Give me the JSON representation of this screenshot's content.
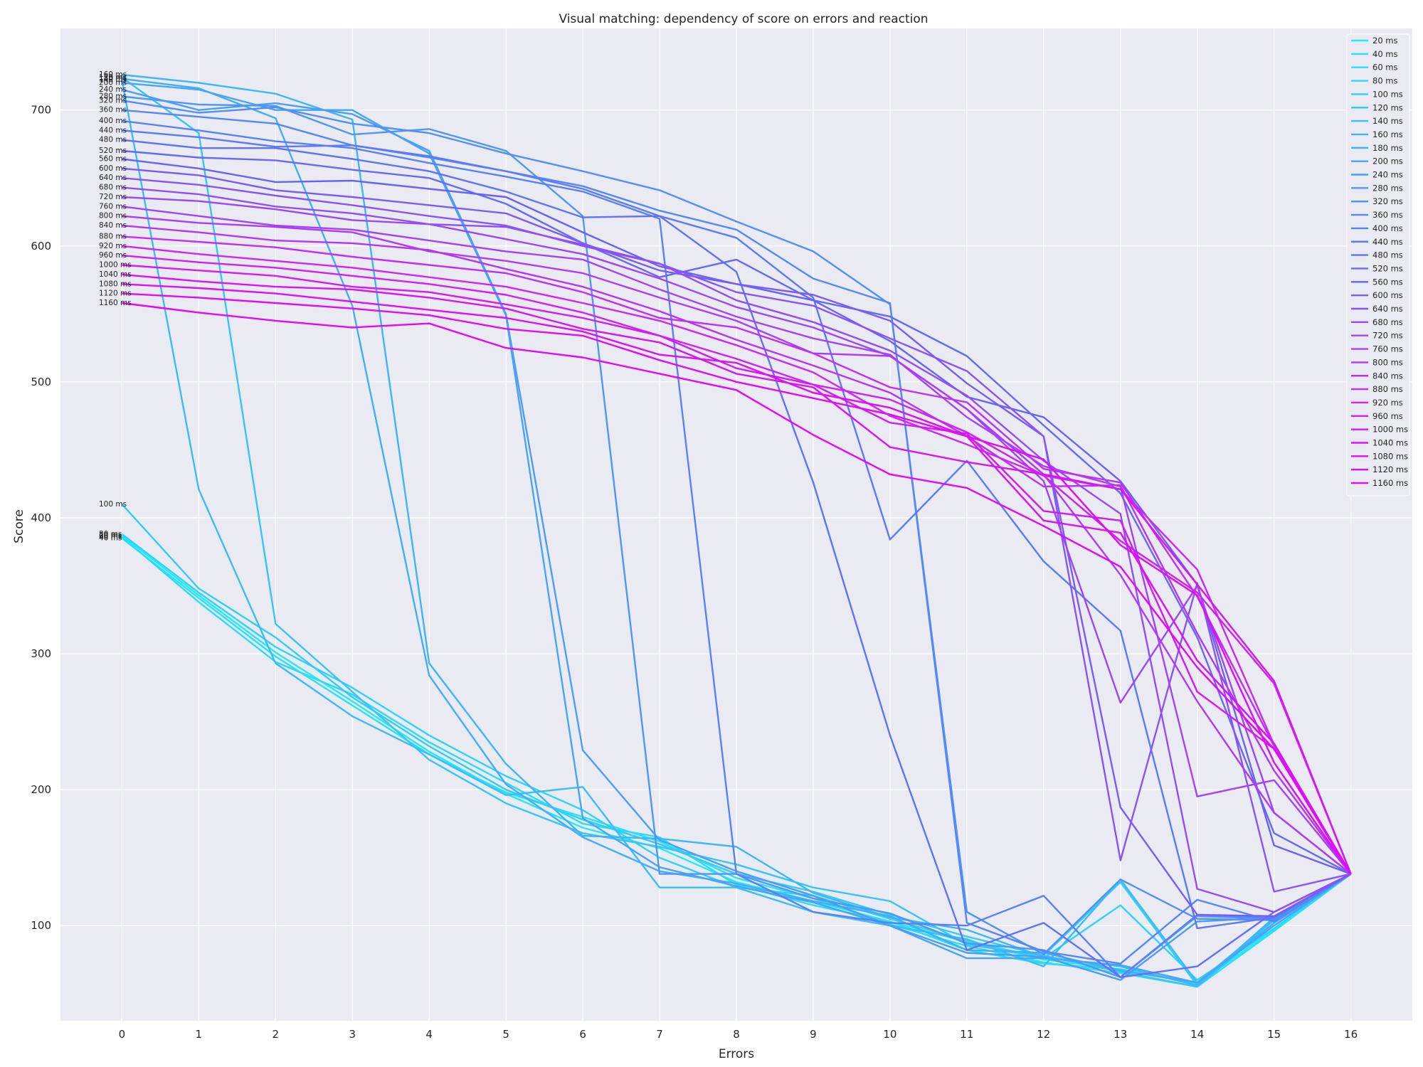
{
  "chart_data": {
    "type": "line",
    "title": "Visual matching: dependency of score on errors and reaction",
    "xlabel": "Errors",
    "ylabel": "Score",
    "x": [
      0,
      1,
      2,
      3,
      4,
      5,
      6,
      7,
      8,
      9,
      10,
      11,
      12,
      13,
      14,
      15,
      16
    ],
    "xlim": [
      -0.8,
      16.8
    ],
    "ylim": [
      30,
      760
    ],
    "yticks": [
      100,
      200,
      300,
      400,
      500,
      600,
      700
    ],
    "grid": true,
    "legend_position": "top-right",
    "series": [
      {
        "name": "20 ms",
        "label": "20  ms",
        "color": "#22ebf5",
        "values": [
          387,
          343,
          301,
          265,
          228,
          197,
          172,
          157,
          132,
          118,
          103,
          88,
          75,
          68,
          57,
          97,
          138
        ]
      },
      {
        "name": "40 ms",
        "label": "40  ms",
        "color": "#26e4f5",
        "values": [
          385,
          341,
          298,
          262,
          226,
          198,
          180,
          162,
          135,
          120,
          101,
          85,
          73,
          65,
          55,
          96,
          138
        ]
      },
      {
        "name": "60 ms",
        "label": "60  ms",
        "color": "#2adcf5",
        "values": [
          386,
          338,
          294,
          270,
          235,
          205,
          175,
          165,
          130,
          115,
          103,
          82,
          72,
          68,
          58,
          100,
          138
        ]
      },
      {
        "name": "80 ms",
        "label": "80  ms",
        "color": "#2ed4f5",
        "values": [
          388,
          345,
          305,
          275,
          240,
          210,
          185,
          150,
          128,
          122,
          105,
          89,
          76,
          115,
          60,
          98,
          138
        ]
      },
      {
        "name": "100 ms",
        "label": "100  ms",
        "color": "#32cdf5",
        "values": [
          410,
          348,
          312,
          268,
          232,
          200,
          178,
          160,
          138,
          125,
          108,
          92,
          78,
          132,
          56,
          105,
          138
        ]
      },
      {
        "name": "120 ms",
        "label": "120 ms",
        "color": "#36c5f5",
        "values": [
          724,
          683,
          322,
          272,
          222,
          190,
          168,
          158,
          145,
          128,
          118,
          86,
          78,
          66,
          55,
          102,
          138
        ]
      },
      {
        "name": "140 ms",
        "label": "140 ms",
        "color": "#3abdf5",
        "values": [
          722,
          421,
          293,
          254,
          226,
          196,
          202,
          128,
          128,
          110,
          100,
          90,
          70,
          134,
          58,
          104,
          138
        ]
      },
      {
        "name": "160 ms",
        "label": "160 ms",
        "color": "#3eb6f5",
        "values": [
          726,
          720,
          712,
          693,
          293,
          219,
          166,
          164,
          158,
          124,
          106,
          97,
          77,
          70,
          56,
          106,
          138
        ]
      },
      {
        "name": "180 ms",
        "label": "180 ms",
        "color": "#42aef5",
        "values": [
          723,
          716,
          694,
          556,
          284,
          204,
          165,
          140,
          131,
          118,
          107,
          82,
          80,
          67,
          58,
          102,
          138
        ]
      },
      {
        "name": "200 ms",
        "label": "200 ms",
        "color": "#46a6f5",
        "values": [
          720,
          715,
          700,
          700,
          668,
          549,
          179,
          143,
          129,
          117,
          100,
          76,
          76,
          71,
          58,
          100,
          138
        ]
      },
      {
        "name": "240 ms",
        "label": "240 ms",
        "color": "#4a9ef5",
        "values": [
          715,
          700,
          705,
          697,
          670,
          550,
          229,
          163,
          140,
          122,
          100,
          80,
          77,
          60,
          103,
          106,
          138
        ]
      },
      {
        "name": "280 ms",
        "label": "280 ms",
        "color": "#4e97f5",
        "values": [
          710,
          704,
          703,
          682,
          686,
          670,
          622,
          138,
          138,
          120,
          109,
          87,
          82,
          62,
          107,
          105,
          138
        ]
      },
      {
        "name": "320 ms",
        "label": "320 ms",
        "color": "#5290f5",
        "values": [
          707,
          698,
          702,
          690,
          683,
          668,
          655,
          641,
          618,
          596,
          557,
          110,
          79,
          134,
          105,
          104,
          138
        ]
      },
      {
        "name": "360 ms",
        "label": "360 ms",
        "color": "#5688f5",
        "values": [
          700,
          695,
          690,
          674,
          665,
          655,
          644,
          626,
          612,
          576,
          558,
          102,
          81,
          72,
          119,
          103,
          138
        ]
      },
      {
        "name": "400 ms",
        "label": "400 ms",
        "color": "#5a80f5",
        "values": [
          692,
          685,
          677,
          672,
          661,
          651,
          640,
          620,
          138,
          110,
          102,
          100,
          122,
          62,
          108,
          106,
          138
        ]
      },
      {
        "name": "440 ms",
        "label": "440 ms",
        "color": "#5e79f5",
        "values": [
          685,
          680,
          673,
          674,
          666,
          655,
          642,
          622,
          606,
          562,
          384,
          442,
          368,
          317,
          98,
          106,
          138
        ]
      },
      {
        "name": "480 ms",
        "label": "480 ms",
        "color": "#6271f5",
        "values": [
          678,
          672,
          672,
          664,
          655,
          640,
          621,
          622,
          581,
          426,
          240,
          82,
          102,
          62,
          70,
          110,
          138
        ]
      },
      {
        "name": "520 ms",
        "label": "520 ms",
        "color": "#6669f5",
        "values": [
          670,
          665,
          663,
          656,
          650,
          631,
          602,
          577,
          590,
          560,
          548,
          519,
          468,
          418,
          312,
          168,
          138
        ]
      },
      {
        "name": "560 ms",
        "label": "560 ms",
        "color": "#6a62f5",
        "values": [
          664,
          657,
          647,
          648,
          642,
          636,
          610,
          585,
          572,
          560,
          530,
          489,
          474,
          427,
          351,
          159,
          138
        ]
      },
      {
        "name": "600 ms",
        "label": "600 ms",
        "color": "#7a5cf5",
        "values": [
          657,
          652,
          641,
          636,
          630,
          624,
          602,
          582,
          572,
          564,
          545,
          499,
          460,
          187,
          108,
          107,
          138
        ]
      },
      {
        "name": "640 ms",
        "label": "640 ms",
        "color": "#8655f5",
        "values": [
          650,
          645,
          637,
          630,
          622,
          615,
          600,
          587,
          566,
          556,
          532,
          508,
          460,
          148,
          352,
          125,
          138
        ]
      },
      {
        "name": "680 ms",
        "label": "680 ms",
        "color": "#904ff5",
        "values": [
          643,
          638,
          629,
          624,
          616,
          614,
          601,
          587,
          560,
          544,
          523,
          490,
          442,
          403,
          127,
          110,
          138
        ]
      },
      {
        "name": "720 ms",
        "label": "720 ms",
        "color": "#9a48f5",
        "values": [
          636,
          633,
          627,
          619,
          616,
          605,
          594,
          576,
          555,
          540,
          519,
          480,
          427,
          264,
          350,
          183,
          138
        ]
      },
      {
        "name": "760 ms",
        "label": "760 ms",
        "color": "#a442f5",
        "values": [
          629,
          622,
          615,
          612,
          604,
          596,
          590,
          568,
          548,
          532,
          520,
          474,
          438,
          423,
          195,
          207,
          138
        ]
      },
      {
        "name": "800 ms",
        "label": "800 ms",
        "color": "#ae3bf5",
        "values": [
          622,
          617,
          614,
          610,
          596,
          589,
          580,
          562,
          545,
          521,
          519,
          480,
          432,
          358,
          265,
          183,
          138
        ]
      },
      {
        "name": "840 ms",
        "label": "840 ms",
        "color": "#b834f5",
        "values": [
          615,
          610,
          604,
          602,
          597,
          583,
          570,
          552,
          531,
          512,
          492,
          460,
          423,
          424,
          315,
          214,
          138
        ]
      },
      {
        "name": "880 ms",
        "label": "880 ms",
        "color": "#c22ef5",
        "values": [
          607,
          603,
          599,
          592,
          586,
          580,
          566,
          547,
          540,
          521,
          496,
          485,
          436,
          426,
          342,
          232,
          138
        ]
      },
      {
        "name": "920 ms",
        "label": "920 ms",
        "color": "#cc27f5",
        "values": [
          600,
          594,
          589,
          584,
          577,
          570,
          558,
          545,
          527,
          507,
          475,
          454,
          431,
          421,
          362,
          233,
          138
        ]
      },
      {
        "name": "960 ms",
        "label": "960 ms",
        "color": "#d020f5",
        "values": [
          593,
          588,
          584,
          578,
          572,
          564,
          551,
          534,
          517,
          498,
          487,
          463,
          431,
          383,
          345,
          278,
          138
        ]
      },
      {
        "name": "1000 ms",
        "label": "1000 ms",
        "color": "#d41af5",
        "values": [
          586,
          582,
          578,
          570,
          566,
          557,
          547,
          534,
          510,
          498,
          470,
          462,
          405,
          398,
          272,
          230,
          138
        ]
      },
      {
        "name": "1040 ms",
        "label": "1040 ms",
        "color": "#d814f5",
        "values": [
          579,
          574,
          570,
          568,
          562,
          554,
          539,
          529,
          506,
          496,
          452,
          441,
          432,
          421,
          351,
          280,
          138
        ]
      },
      {
        "name": "1080 ms",
        "label": "1080 ms",
        "color": "#dc10f5",
        "values": [
          572,
          569,
          565,
          559,
          553,
          547,
          537,
          520,
          514,
          492,
          481,
          460,
          398,
          389,
          295,
          234,
          138
        ]
      },
      {
        "name": "1120 ms",
        "label": "1120 ms",
        "color": "#e00cf5",
        "values": [
          565,
          562,
          558,
          554,
          549,
          539,
          534,
          516,
          500,
          488,
          476,
          460,
          443,
          380,
          343,
          220,
          138
        ]
      },
      {
        "name": "1160 ms",
        "label": "1160 ms",
        "color": "#e408f5",
        "values": [
          558,
          551,
          545,
          540,
          543,
          525,
          518,
          506,
          494,
          461,
          432,
          422,
          394,
          364,
          290,
          230,
          138
        ]
      }
    ]
  }
}
